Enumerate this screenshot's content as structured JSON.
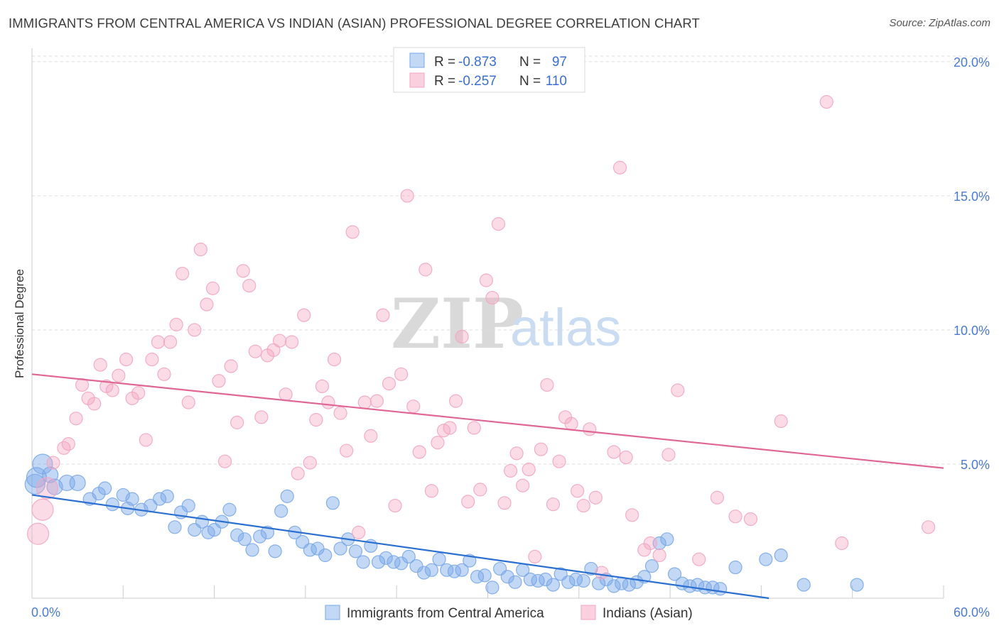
{
  "header": {
    "title": "IMMIGRANTS FROM CENTRAL AMERICA VS INDIAN (ASIAN) PROFESSIONAL DEGREE CORRELATION CHART",
    "source": "Source: ZipAtlas.com"
  },
  "watermark": {
    "zip": "ZIP",
    "atlas": "atlas"
  },
  "chart_data": {
    "type": "scatter",
    "xlabel": "",
    "ylabel": "Professional Degree",
    "xlim": [
      0,
      60
    ],
    "ylim": [
      0,
      20.5
    ],
    "x_tick_labels": {
      "min": "0.0%",
      "max": "60.0%"
    },
    "y_ticks": [
      {
        "value": 5,
        "label": "5.0%"
      },
      {
        "value": 10,
        "label": "10.0%"
      },
      {
        "value": 15,
        "label": "15.0%"
      },
      {
        "value": 20,
        "label": "20.0%"
      }
    ],
    "grid": "horizontal dashed",
    "legend_placement": "top-center",
    "series": [
      {
        "name": "Immigrants from Central America",
        "color": "#7aa8e8",
        "line_color": "#2b6fd0",
        "r_label": "R =",
        "r_value": "-0.873",
        "n_label": "N =",
        "n_value": "97",
        "trend": {
          "x0": 0,
          "y0": 3.85,
          "x1": 48.5,
          "y1": 0.0
        },
        "points": [
          [
            0.3,
            4.5
          ],
          [
            0.7,
            5.0
          ],
          [
            1.2,
            4.6
          ],
          [
            2.3,
            4.3
          ],
          [
            3.0,
            4.3
          ],
          [
            3.8,
            3.7
          ],
          [
            4.4,
            3.9
          ],
          [
            4.8,
            4.1
          ],
          [
            5.3,
            3.5
          ],
          [
            6.0,
            3.85
          ],
          [
            6.3,
            3.35
          ],
          [
            6.6,
            3.7
          ],
          [
            7.2,
            3.3
          ],
          [
            7.8,
            3.45
          ],
          [
            8.4,
            3.7
          ],
          [
            8.9,
            3.8
          ],
          [
            9.4,
            2.65
          ],
          [
            9.8,
            3.2
          ],
          [
            10.3,
            3.45
          ],
          [
            10.7,
            2.55
          ],
          [
            11.2,
            2.85
          ],
          [
            11.6,
            2.45
          ],
          [
            12.0,
            2.55
          ],
          [
            12.5,
            2.85
          ],
          [
            13.0,
            3.3
          ],
          [
            13.5,
            2.35
          ],
          [
            14.0,
            2.2
          ],
          [
            14.5,
            1.8
          ],
          [
            15.0,
            2.3
          ],
          [
            15.5,
            2.45
          ],
          [
            16.0,
            1.75
          ],
          [
            16.4,
            3.25
          ],
          [
            16.8,
            3.8
          ],
          [
            17.3,
            2.45
          ],
          [
            17.8,
            2.1
          ],
          [
            18.3,
            1.8
          ],
          [
            18.8,
            1.85
          ],
          [
            19.3,
            1.6
          ],
          [
            19.8,
            3.55
          ],
          [
            20.3,
            1.85
          ],
          [
            20.8,
            2.2
          ],
          [
            21.3,
            1.75
          ],
          [
            21.8,
            1.35
          ],
          [
            22.3,
            1.95
          ],
          [
            22.8,
            1.35
          ],
          [
            23.3,
            1.5
          ],
          [
            23.8,
            1.35
          ],
          [
            24.3,
            1.3
          ],
          [
            24.8,
            1.55
          ],
          [
            25.3,
            1.2
          ],
          [
            25.8,
            0.95
          ],
          [
            26.3,
            1.05
          ],
          [
            26.8,
            1.45
          ],
          [
            27.3,
            1.05
          ],
          [
            27.8,
            1.0
          ],
          [
            28.3,
            1.05
          ],
          [
            28.8,
            1.4
          ],
          [
            29.3,
            0.8
          ],
          [
            29.8,
            0.85
          ],
          [
            30.3,
            0.4
          ],
          [
            30.8,
            1.1
          ],
          [
            31.3,
            0.8
          ],
          [
            31.8,
            0.6
          ],
          [
            32.3,
            1.05
          ],
          [
            32.8,
            0.7
          ],
          [
            33.3,
            0.65
          ],
          [
            33.8,
            0.7
          ],
          [
            34.3,
            0.5
          ],
          [
            34.8,
            0.9
          ],
          [
            35.3,
            0.6
          ],
          [
            35.8,
            0.7
          ],
          [
            36.3,
            0.65
          ],
          [
            36.8,
            1.1
          ],
          [
            37.3,
            0.55
          ],
          [
            37.8,
            0.7
          ],
          [
            38.3,
            0.45
          ],
          [
            38.8,
            0.55
          ],
          [
            39.3,
            0.5
          ],
          [
            39.8,
            0.6
          ],
          [
            40.3,
            0.8
          ],
          [
            40.8,
            1.2
          ],
          [
            41.3,
            2.05
          ],
          [
            41.8,
            2.2
          ],
          [
            42.3,
            0.9
          ],
          [
            42.8,
            0.55
          ],
          [
            43.3,
            0.45
          ],
          [
            43.8,
            0.5
          ],
          [
            44.3,
            0.4
          ],
          [
            44.8,
            0.4
          ],
          [
            45.3,
            0.35
          ],
          [
            46.3,
            1.15
          ],
          [
            48.3,
            1.45
          ],
          [
            49.3,
            1.6
          ],
          [
            50.8,
            0.5
          ],
          [
            54.3,
            0.5
          ],
          [
            0.2,
            4.25
          ],
          [
            1.5,
            4.15
          ]
        ]
      },
      {
        "name": "Indians (Asian)",
        "color": "#f2a6c0",
        "line_color": "#e06694",
        "r_label": "R =",
        "r_value": "-0.257",
        "n_label": "N =",
        "n_value": "110",
        "trend": {
          "x0": 0,
          "y0": 8.35,
          "x1": 60,
          "y1": 4.85
        },
        "points": [
          [
            0.4,
            2.4
          ],
          [
            0.7,
            3.3
          ],
          [
            1.0,
            4.1
          ],
          [
            1.4,
            5.05
          ],
          [
            2.1,
            5.6
          ],
          [
            2.4,
            5.75
          ],
          [
            2.9,
            6.7
          ],
          [
            3.3,
            7.95
          ],
          [
            3.7,
            7.45
          ],
          [
            4.1,
            7.25
          ],
          [
            4.5,
            8.7
          ],
          [
            4.9,
            7.9
          ],
          [
            5.3,
            7.75
          ],
          [
            5.7,
            8.3
          ],
          [
            6.2,
            8.9
          ],
          [
            6.6,
            7.45
          ],
          [
            7.0,
            7.65
          ],
          [
            7.5,
            5.9
          ],
          [
            7.9,
            8.9
          ],
          [
            8.3,
            9.55
          ],
          [
            8.7,
            8.35
          ],
          [
            9.1,
            9.55
          ],
          [
            9.5,
            10.2
          ],
          [
            9.9,
            12.1
          ],
          [
            10.3,
            7.3
          ],
          [
            10.7,
            10.0
          ],
          [
            11.1,
            13.0
          ],
          [
            11.5,
            10.95
          ],
          [
            11.9,
            11.55
          ],
          [
            12.3,
            8.1
          ],
          [
            12.7,
            5.1
          ],
          [
            13.1,
            8.65
          ],
          [
            13.5,
            6.55
          ],
          [
            13.9,
            12.2
          ],
          [
            14.3,
            11.65
          ],
          [
            14.7,
            9.2
          ],
          [
            15.1,
            6.75
          ],
          [
            15.5,
            9.05
          ],
          [
            15.9,
            9.25
          ],
          [
            16.3,
            9.6
          ],
          [
            16.7,
            7.6
          ],
          [
            17.1,
            9.55
          ],
          [
            17.5,
            4.65
          ],
          [
            17.9,
            10.55
          ],
          [
            18.3,
            5.05
          ],
          [
            18.7,
            6.65
          ],
          [
            19.1,
            7.9
          ],
          [
            19.5,
            7.3
          ],
          [
            19.9,
            8.9
          ],
          [
            20.3,
            6.9
          ],
          [
            20.7,
            5.5
          ],
          [
            21.1,
            13.65
          ],
          [
            21.5,
            2.45
          ],
          [
            21.9,
            7.3
          ],
          [
            22.3,
            6.05
          ],
          [
            22.7,
            7.35
          ],
          [
            23.1,
            10.55
          ],
          [
            23.5,
            8.0
          ],
          [
            23.9,
            3.45
          ],
          [
            24.3,
            8.35
          ],
          [
            24.7,
            15.0
          ],
          [
            25.1,
            7.15
          ],
          [
            25.5,
            5.45
          ],
          [
            25.9,
            12.25
          ],
          [
            26.3,
            4.0
          ],
          [
            26.7,
            5.8
          ],
          [
            27.1,
            6.25
          ],
          [
            27.5,
            6.35
          ],
          [
            27.9,
            7.35
          ],
          [
            28.3,
            9.75
          ],
          [
            28.7,
            3.6
          ],
          [
            29.1,
            6.35
          ],
          [
            29.5,
            4.05
          ],
          [
            29.9,
            11.85
          ],
          [
            30.3,
            11.2
          ],
          [
            30.7,
            13.95
          ],
          [
            31.1,
            3.55
          ],
          [
            31.5,
            4.75
          ],
          [
            31.9,
            5.4
          ],
          [
            32.3,
            4.2
          ],
          [
            32.7,
            4.8
          ],
          [
            33.1,
            1.55
          ],
          [
            33.5,
            5.55
          ],
          [
            33.9,
            7.95
          ],
          [
            34.3,
            3.5
          ],
          [
            34.7,
            5.1
          ],
          [
            35.1,
            6.75
          ],
          [
            35.5,
            6.5
          ],
          [
            35.9,
            4.0
          ],
          [
            36.3,
            3.45
          ],
          [
            36.7,
            6.3
          ],
          [
            37.1,
            3.75
          ],
          [
            37.5,
            0.95
          ],
          [
            38.3,
            5.45
          ],
          [
            38.7,
            16.05
          ],
          [
            39.1,
            5.25
          ],
          [
            39.5,
            3.1
          ],
          [
            40.3,
            1.8
          ],
          [
            40.7,
            2.05
          ],
          [
            41.3,
            1.6
          ],
          [
            41.9,
            5.35
          ],
          [
            42.5,
            7.75
          ],
          [
            43.9,
            1.45
          ],
          [
            45.1,
            3.75
          ],
          [
            46.3,
            3.05
          ],
          [
            47.3,
            2.95
          ],
          [
            49.3,
            6.6
          ],
          [
            52.3,
            18.5
          ],
          [
            53.3,
            2.05
          ],
          [
            59.0,
            2.65
          ]
        ]
      }
    ]
  }
}
